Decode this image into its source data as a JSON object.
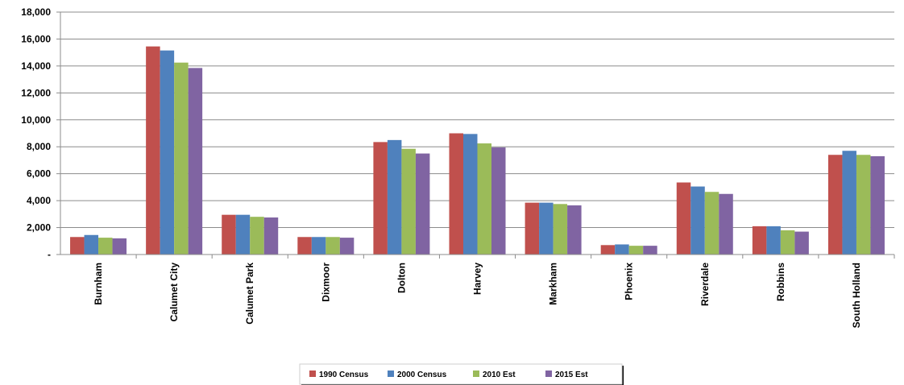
{
  "chart_data": {
    "type": "bar",
    "categories": [
      "Burnham",
      "Calumet City",
      "Calumet Park",
      "Dixmoor",
      "Dolton",
      "Harvey",
      "Markham",
      "Phoenix",
      "Riverdale",
      "Robbins",
      "South Holland"
    ],
    "series": [
      {
        "name": "1990 Census",
        "color": "#c0504d",
        "values": [
          1300,
          15450,
          2950,
          1300,
          8350,
          9000,
          3850,
          700,
          5350,
          2100,
          7400
        ]
      },
      {
        "name": "2000 Census",
        "color": "#4f81bd",
        "values": [
          1450,
          15150,
          2950,
          1300,
          8500,
          8950,
          3850,
          750,
          5050,
          2100,
          7700
        ]
      },
      {
        "name": "2010 Est",
        "color": "#9bbb59",
        "values": [
          1250,
          14250,
          2800,
          1300,
          7850,
          8250,
          3750,
          650,
          4650,
          1800,
          7400
        ]
      },
      {
        "name": "2015 Est",
        "color": "#8064a2",
        "values": [
          1200,
          13850,
          2750,
          1250,
          7500,
          7950,
          3650,
          650,
          4500,
          1700,
          7300
        ]
      }
    ],
    "yticks": [
      "-",
      "2,000",
      "4,000",
      "6,000",
      "8,000",
      "10,000",
      "12,000",
      "14,000",
      "16,000",
      "18,000"
    ],
    "ylim": [
      0,
      18000
    ],
    "grid": true,
    "legend_position": "bottom",
    "title": "",
    "xlabel": "",
    "ylabel": ""
  }
}
